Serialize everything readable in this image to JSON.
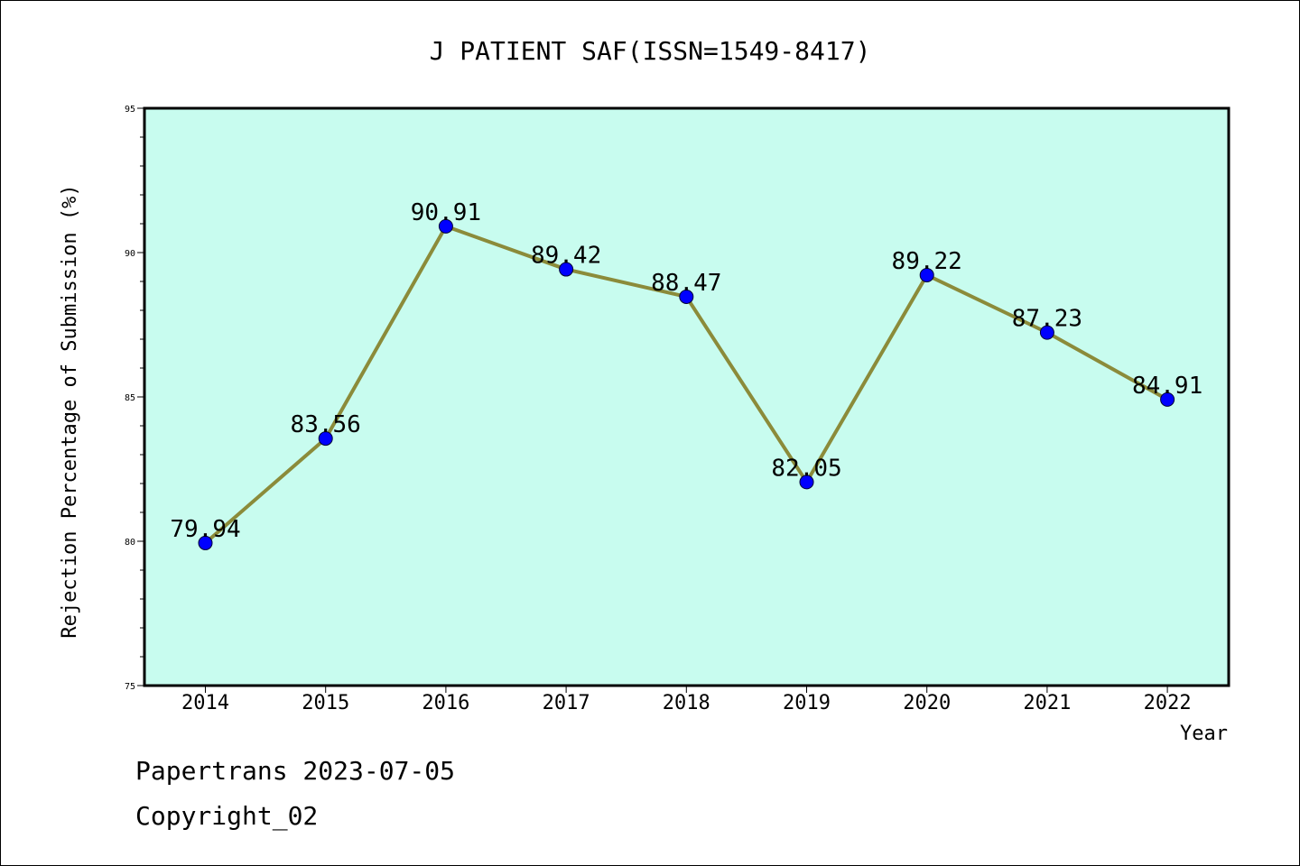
{
  "chart_data": {
    "type": "line",
    "title": "J PATIENT SAF(ISSN=1549-8417)",
    "xlabel": "Year",
    "ylabel": "Rejection Percentage of Submission (%)",
    "categories": [
      "2014",
      "2015",
      "2016",
      "2017",
      "2018",
      "2019",
      "2020",
      "2021",
      "2022"
    ],
    "values": [
      79.94,
      83.56,
      90.91,
      89.42,
      88.47,
      82.05,
      89.22,
      87.23,
      84.91
    ],
    "data_labels": [
      "79.94",
      "83.56",
      "90.91",
      "89.42",
      "88.47",
      "82.05",
      "89.22",
      "87.23",
      "84.91"
    ],
    "ylim": [
      75,
      95
    ],
    "yticks": [
      "75",
      "80",
      "85",
      "90",
      "95"
    ],
    "grid": false,
    "colors": {
      "plot_background": "#c8fcef",
      "line": "#8b8b3a",
      "marker": "#0000ff"
    }
  },
  "footer": {
    "line1": "Papertrans 2023-07-05",
    "line2": "Copyright_02"
  }
}
